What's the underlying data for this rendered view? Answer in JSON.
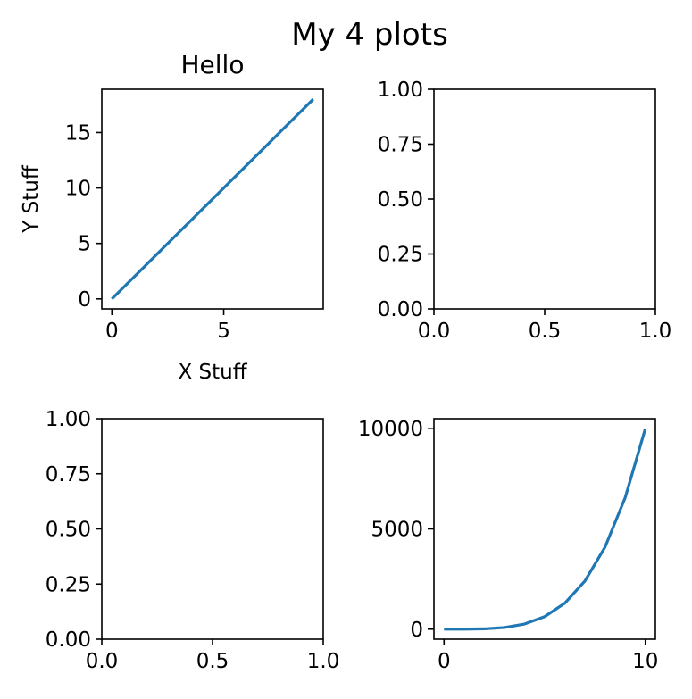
{
  "figure": {
    "suptitle": "My 4 plots"
  },
  "chart_data": [
    {
      "position": "top-left",
      "type": "line",
      "title": "Hello",
      "xlabel": "X Stuff",
      "ylabel": "Y Stuff",
      "xlim": [
        -0.45,
        9.45
      ],
      "ylim": [
        -0.9,
        18.9
      ],
      "xticks": [
        0,
        5
      ],
      "xtick_labels": [
        "0",
        "5"
      ],
      "yticks": [
        0,
        5,
        10,
        15
      ],
      "ytick_labels": [
        "0",
        "5",
        "10",
        "15"
      ],
      "grid": false,
      "series": [
        {
          "color": "#1f77b4",
          "x": [
            0,
            1,
            2,
            3,
            4,
            5,
            6,
            7,
            8,
            9
          ],
          "y": [
            0,
            2,
            4,
            6,
            8,
            10,
            12,
            14,
            16,
            18
          ]
        }
      ]
    },
    {
      "position": "top-right",
      "type": "line",
      "title": "",
      "xlabel": "",
      "ylabel": "",
      "xlim": [
        0,
        1
      ],
      "ylim": [
        0,
        1
      ],
      "xticks": [
        0,
        0.5,
        1
      ],
      "xtick_labels": [
        "0.0",
        "0.5",
        "1.0"
      ],
      "yticks": [
        0,
        0.25,
        0.5,
        0.75,
        1
      ],
      "ytick_labels": [
        "0.00",
        "0.25",
        "0.50",
        "0.75",
        "1.00"
      ],
      "grid": false,
      "series": []
    },
    {
      "position": "bottom-left",
      "type": "line",
      "title": "",
      "xlabel": "",
      "ylabel": "",
      "xlim": [
        0,
        1
      ],
      "ylim": [
        0,
        1
      ],
      "xticks": [
        0,
        0.5,
        1
      ],
      "xtick_labels": [
        "0.0",
        "0.5",
        "1.0"
      ],
      "yticks": [
        0,
        0.25,
        0.5,
        0.75,
        1
      ],
      "ytick_labels": [
        "0.00",
        "0.25",
        "0.50",
        "0.75",
        "1.00"
      ],
      "grid": false,
      "series": []
    },
    {
      "position": "bottom-right",
      "type": "line",
      "title": "",
      "xlabel": "",
      "ylabel": "",
      "xlim": [
        -0.5,
        10.5
      ],
      "ylim": [
        -500,
        10500
      ],
      "xticks": [
        0,
        10
      ],
      "xtick_labels": [
        "0",
        "10"
      ],
      "yticks": [
        0,
        5000,
        10000
      ],
      "ytick_labels": [
        "0",
        "5000",
        "10000"
      ],
      "grid": false,
      "series": [
        {
          "color": "#1f77b4",
          "x": [
            0,
            1,
            2,
            3,
            4,
            5,
            6,
            7,
            8,
            9,
            10
          ],
          "y": [
            0,
            1,
            16,
            81,
            256,
            625,
            1296,
            2401,
            4096,
            6561,
            10000
          ]
        }
      ]
    }
  ]
}
